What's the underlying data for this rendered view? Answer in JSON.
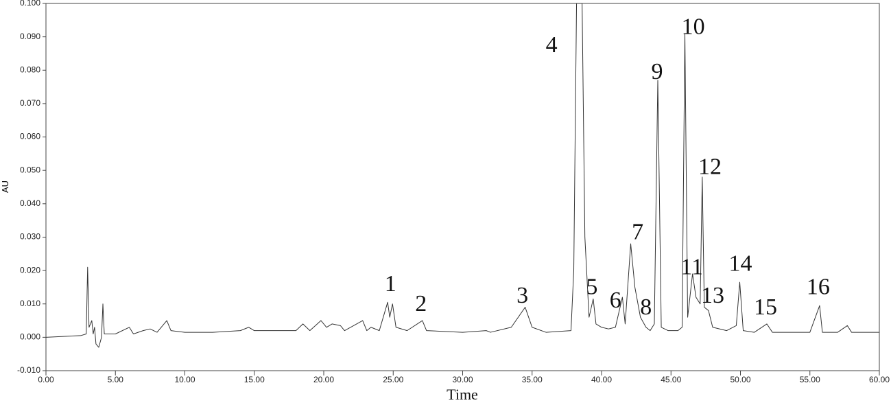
{
  "chart_data": {
    "type": "line",
    "xlabel": "Time",
    "ylabel": "AU",
    "xlim": [
      0,
      60
    ],
    "ylim": [
      -0.01,
      0.1
    ],
    "xticks": [
      {
        "value": 0,
        "label": "0.00"
      },
      {
        "value": 5,
        "label": "5.00"
      },
      {
        "value": 10,
        "label": "10.00"
      },
      {
        "value": 15,
        "label": "15.00"
      },
      {
        "value": 20,
        "label": "20.00"
      },
      {
        "value": 25,
        "label": "25.00"
      },
      {
        "value": 30,
        "label": "30.00"
      },
      {
        "value": 35,
        "label": "35.00"
      },
      {
        "value": 40,
        "label": "40.00"
      },
      {
        "value": 45,
        "label": "45.00"
      },
      {
        "value": 50,
        "label": "50.00"
      },
      {
        "value": 55,
        "label": "55.00"
      },
      {
        "value": 60,
        "label": "60.00"
      }
    ],
    "yticks": [
      {
        "value": -0.01,
        "label": "-0.010"
      },
      {
        "value": 0,
        "label": "0.000"
      },
      {
        "value": 0.01,
        "label": "0.010"
      },
      {
        "value": 0.02,
        "label": "0.020"
      },
      {
        "value": 0.03,
        "label": "0.030"
      },
      {
        "value": 0.04,
        "label": "0.040"
      },
      {
        "value": 0.05,
        "label": "0.050"
      },
      {
        "value": 0.06,
        "label": "0.060"
      },
      {
        "value": 0.07,
        "label": "0.070"
      },
      {
        "value": 0.08,
        "label": "0.080"
      },
      {
        "value": 0.09,
        "label": "0.090"
      },
      {
        "value": 0.1,
        "label": "0.100"
      }
    ],
    "grid": false,
    "x": [
      0,
      2.5,
      2.9,
      3.0,
      3.1,
      3.3,
      3.4,
      3.5,
      3.6,
      3.8,
      4.0,
      4.1,
      4.2,
      5.0,
      6.0,
      6.3,
      7.0,
      7.5,
      8.0,
      8.7,
      9.0,
      10,
      12,
      14,
      14.6,
      15,
      18,
      18.5,
      19,
      19.8,
      20.2,
      20.6,
      21.2,
      21.5,
      22.8,
      23.1,
      23.4,
      24,
      24.6,
      24.75,
      24.95,
      25.2,
      26,
      27.1,
      27.4,
      30,
      31.7,
      32,
      33.5,
      34.5,
      35,
      36,
      37.8,
      38.0,
      38.2,
      38.6,
      38.8,
      39.1,
      39.4,
      39.6,
      40,
      40.5,
      41.0,
      41.5,
      41.7,
      42.1,
      42.4,
      42.8,
      43.2,
      43.5,
      43.8,
      44.05,
      44.3,
      44.8,
      45.5,
      45.8,
      46.0,
      46.2,
      46.55,
      46.8,
      47.1,
      47.25,
      47.4,
      47.7,
      48,
      49,
      49.7,
      49.95,
      50.2,
      51,
      51.9,
      52.3,
      55,
      55.7,
      55.9,
      57,
      57.7,
      58,
      60
    ],
    "series": [
      {
        "color": "#333333",
        "values": [
          0,
          0.0005,
          0.001,
          0.021,
          0.003,
          0.005,
          0.001,
          0.003,
          -0.002,
          -0.003,
          0.0,
          0.01,
          0.001,
          0.001,
          0.003,
          0.001,
          0.002,
          0.0025,
          0.0015,
          0.005,
          0.002,
          0.0015,
          0.0015,
          0.002,
          0.003,
          0.002,
          0.002,
          0.004,
          0.002,
          0.005,
          0.003,
          0.004,
          0.0035,
          0.002,
          0.005,
          0.002,
          0.003,
          0.002,
          0.0105,
          0.006,
          0.01,
          0.003,
          0.002,
          0.005,
          0.002,
          0.0015,
          0.002,
          0.0015,
          0.003,
          0.009,
          0.003,
          0.0015,
          0.002,
          0.02,
          0.1,
          0.1,
          0.03,
          0.006,
          0.0115,
          0.004,
          0.003,
          0.0025,
          0.003,
          0.012,
          0.004,
          0.028,
          0.015,
          0.006,
          0.003,
          0.002,
          0.004,
          0.077,
          0.003,
          0.002,
          0.002,
          0.003,
          0.091,
          0.006,
          0.019,
          0.012,
          0.01,
          0.048,
          0.009,
          0.008,
          0.003,
          0.002,
          0.0035,
          0.0165,
          0.002,
          0.0015,
          0.004,
          0.0015,
          0.0015,
          0.0095,
          0.0015,
          0.0015,
          0.0035,
          0.0015,
          0.0015
        ]
      }
    ],
    "annotations": [
      {
        "text": "1",
        "x": 24.8,
        "y": 0.0155
      },
      {
        "text": "2",
        "x": 27.0,
        "y": 0.0095
      },
      {
        "text": "3",
        "x": 34.3,
        "y": 0.012
      },
      {
        "text": "4",
        "x": 36.4,
        "y": 0.087
      },
      {
        "text": "5",
        "x": 39.3,
        "y": 0.0145
      },
      {
        "text": "6",
        "x": 41.0,
        "y": 0.0105
      },
      {
        "text": "7",
        "x": 42.6,
        "y": 0.031
      },
      {
        "text": "8",
        "x": 43.2,
        "y": 0.0085
      },
      {
        "text": "9",
        "x": 44.0,
        "y": 0.079
      },
      {
        "text": "10",
        "x": 46.6,
        "y": 0.0925
      },
      {
        "text": "11",
        "x": 46.5,
        "y": 0.0205
      },
      {
        "text": "12",
        "x": 47.8,
        "y": 0.0505
      },
      {
        "text": "13",
        "x": 48.0,
        "y": 0.012
      },
      {
        "text": "14",
        "x": 50.0,
        "y": 0.0215
      },
      {
        "text": "15",
        "x": 51.8,
        "y": 0.0085
      },
      {
        "text": "16",
        "x": 55.6,
        "y": 0.0145
      }
    ]
  }
}
